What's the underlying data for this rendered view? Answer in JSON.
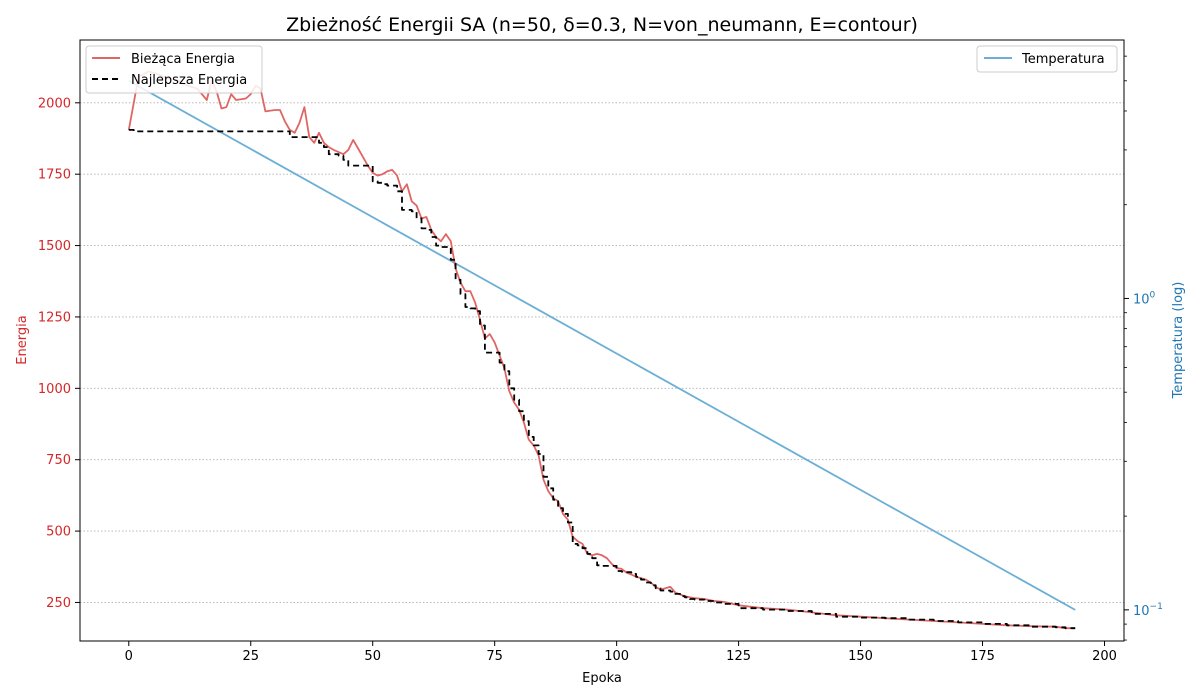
{
  "chart_data": {
    "type": "line",
    "title": "Zbieżność Energii SA (n=50, δ=0.3, N=von_neumann, E=contour)",
    "xlabel": "Epoka",
    "ylabel_left": "Energia",
    "ylabel_right": "Temperatura (log)",
    "xlim": [
      -10,
      204
    ],
    "ylim_left": [
      115,
      2220
    ],
    "ylim_right_log10": [
      -1.1,
      0.83
    ],
    "x_ticks": [
      0,
      25,
      50,
      75,
      100,
      125,
      150,
      175,
      200
    ],
    "y_left_ticks": [
      250,
      500,
      750,
      1000,
      1250,
      1500,
      1750,
      2000
    ],
    "y_right_ticks": [
      {
        "value": 1,
        "base": "10",
        "exp": "0"
      },
      {
        "value": 0.1,
        "base": "10",
        "exp": "−1"
      }
    ],
    "grid": "horizontal dotted on left axis",
    "colors": {
      "current": "#e06666",
      "best": "#000000",
      "temperature": "#6baed6",
      "left_axis": "#d62728",
      "right_axis": "#1f77b4"
    },
    "legend_left": {
      "position": "top-left",
      "entries": [
        "Bieżąca Energia",
        "Najlepsza Energia"
      ]
    },
    "legend_right": {
      "position": "top-right",
      "entries": [
        "Temperatura"
      ]
    },
    "series": [
      {
        "name": "Bieżąca Energia",
        "x": [
          0,
          2,
          4,
          6,
          8,
          10,
          12,
          14,
          16,
          17,
          18,
          19,
          20,
          21,
          22,
          24,
          25,
          26,
          27,
          28,
          30,
          31,
          32,
          33,
          34,
          35,
          36,
          37,
          38,
          39,
          40,
          41,
          42,
          44,
          45,
          46,
          47,
          48,
          49,
          50,
          51,
          52,
          53,
          54,
          55,
          56,
          57,
          58,
          59,
          60,
          61,
          62,
          63,
          64,
          65,
          66,
          67,
          68,
          69,
          70,
          71,
          72,
          73,
          74,
          75,
          76,
          77,
          78,
          79,
          80,
          81,
          82,
          83,
          84,
          85,
          86,
          87,
          88,
          89,
          90,
          91,
          92,
          93,
          94,
          95,
          96,
          97,
          98,
          99,
          100,
          101,
          102,
          103,
          104,
          105,
          106,
          107,
          108,
          109,
          110,
          111,
          112,
          113,
          114,
          115,
          116,
          118,
          120,
          122,
          125,
          130,
          135,
          140,
          145,
          150,
          155,
          160,
          165,
          170,
          175,
          180,
          185,
          190,
          192,
          194
        ],
        "y": [
          1905,
          2090,
          2110,
          2100,
          2085,
          2080,
          2060,
          2050,
          2010,
          2080,
          2040,
          1980,
          1985,
          2030,
          2010,
          2015,
          2030,
          2060,
          2050,
          1970,
          1975,
          1975,
          1935,
          1905,
          1895,
          1930,
          1985,
          1880,
          1860,
          1895,
          1860,
          1845,
          1835,
          1820,
          1835,
          1870,
          1840,
          1810,
          1780,
          1755,
          1745,
          1750,
          1760,
          1765,
          1745,
          1690,
          1715,
          1655,
          1640,
          1595,
          1600,
          1555,
          1530,
          1515,
          1540,
          1515,
          1420,
          1370,
          1340,
          1340,
          1300,
          1240,
          1175,
          1190,
          1160,
          1115,
          1070,
          990,
          950,
          925,
          880,
          820,
          800,
          765,
          680,
          640,
          615,
          605,
          560,
          540,
          480,
          465,
          455,
          420,
          415,
          420,
          415,
          405,
          385,
          370,
          368,
          355,
          348,
          340,
          335,
          330,
          320,
          305,
          295,
          300,
          305,
          285,
          278,
          272,
          268,
          265,
          262,
          255,
          252,
          240,
          230,
          225,
          215,
          205,
          200,
          195,
          190,
          185,
          180,
          175,
          170,
          167,
          165,
          160,
          160
        ]
      },
      {
        "name": "Najlepsza Energia",
        "x": [
          0,
          1,
          33,
          38,
          39,
          40,
          41,
          43,
          44,
          45,
          49,
          50,
          51,
          52,
          53,
          54,
          55,
          56,
          58,
          59,
          60,
          61,
          62,
          63,
          64,
          65,
          66,
          67,
          68,
          69,
          70,
          71,
          72,
          73,
          75,
          76,
          77,
          78,
          79,
          80,
          81,
          82,
          83,
          84,
          85,
          86,
          87,
          88,
          89,
          90,
          91,
          92,
          93,
          94,
          95,
          96,
          97,
          98,
          99,
          100,
          101,
          102,
          103,
          104,
          105,
          106,
          107,
          108,
          109,
          110,
          111,
          112,
          113,
          114,
          115,
          116,
          118,
          120,
          122,
          125,
          130,
          135,
          140,
          145,
          150,
          155,
          160,
          165,
          170,
          175,
          180,
          185,
          190,
          192,
          194
        ],
        "y": [
          1905,
          1900,
          1880,
          1880,
          1860,
          1845,
          1820,
          1815,
          1800,
          1780,
          1780,
          1725,
          1720,
          1715,
          1710,
          1710,
          1690,
          1625,
          1620,
          1595,
          1560,
          1555,
          1530,
          1500,
          1495,
          1495,
          1450,
          1380,
          1330,
          1285,
          1280,
          1270,
          1220,
          1125,
          1125,
          1090,
          1060,
          1000,
          960,
          920,
          885,
          830,
          800,
          770,
          690,
          650,
          610,
          580,
          560,
          530,
          455,
          450,
          440,
          420,
          405,
          380,
          378,
          378,
          378,
          360,
          358,
          356,
          350,
          340,
          330,
          320,
          310,
          300,
          292,
          292,
          288,
          280,
          272,
          268,
          262,
          260,
          255,
          250,
          245,
          230,
          225,
          220,
          210,
          200,
          197,
          195,
          190,
          185,
          180,
          175,
          170,
          165,
          163,
          160,
          160
        ]
      },
      {
        "name": "Temperatura",
        "axis": "right-log",
        "x": [
          0,
          194
        ],
        "y": [
          5.0,
          0.1
        ]
      }
    ]
  }
}
